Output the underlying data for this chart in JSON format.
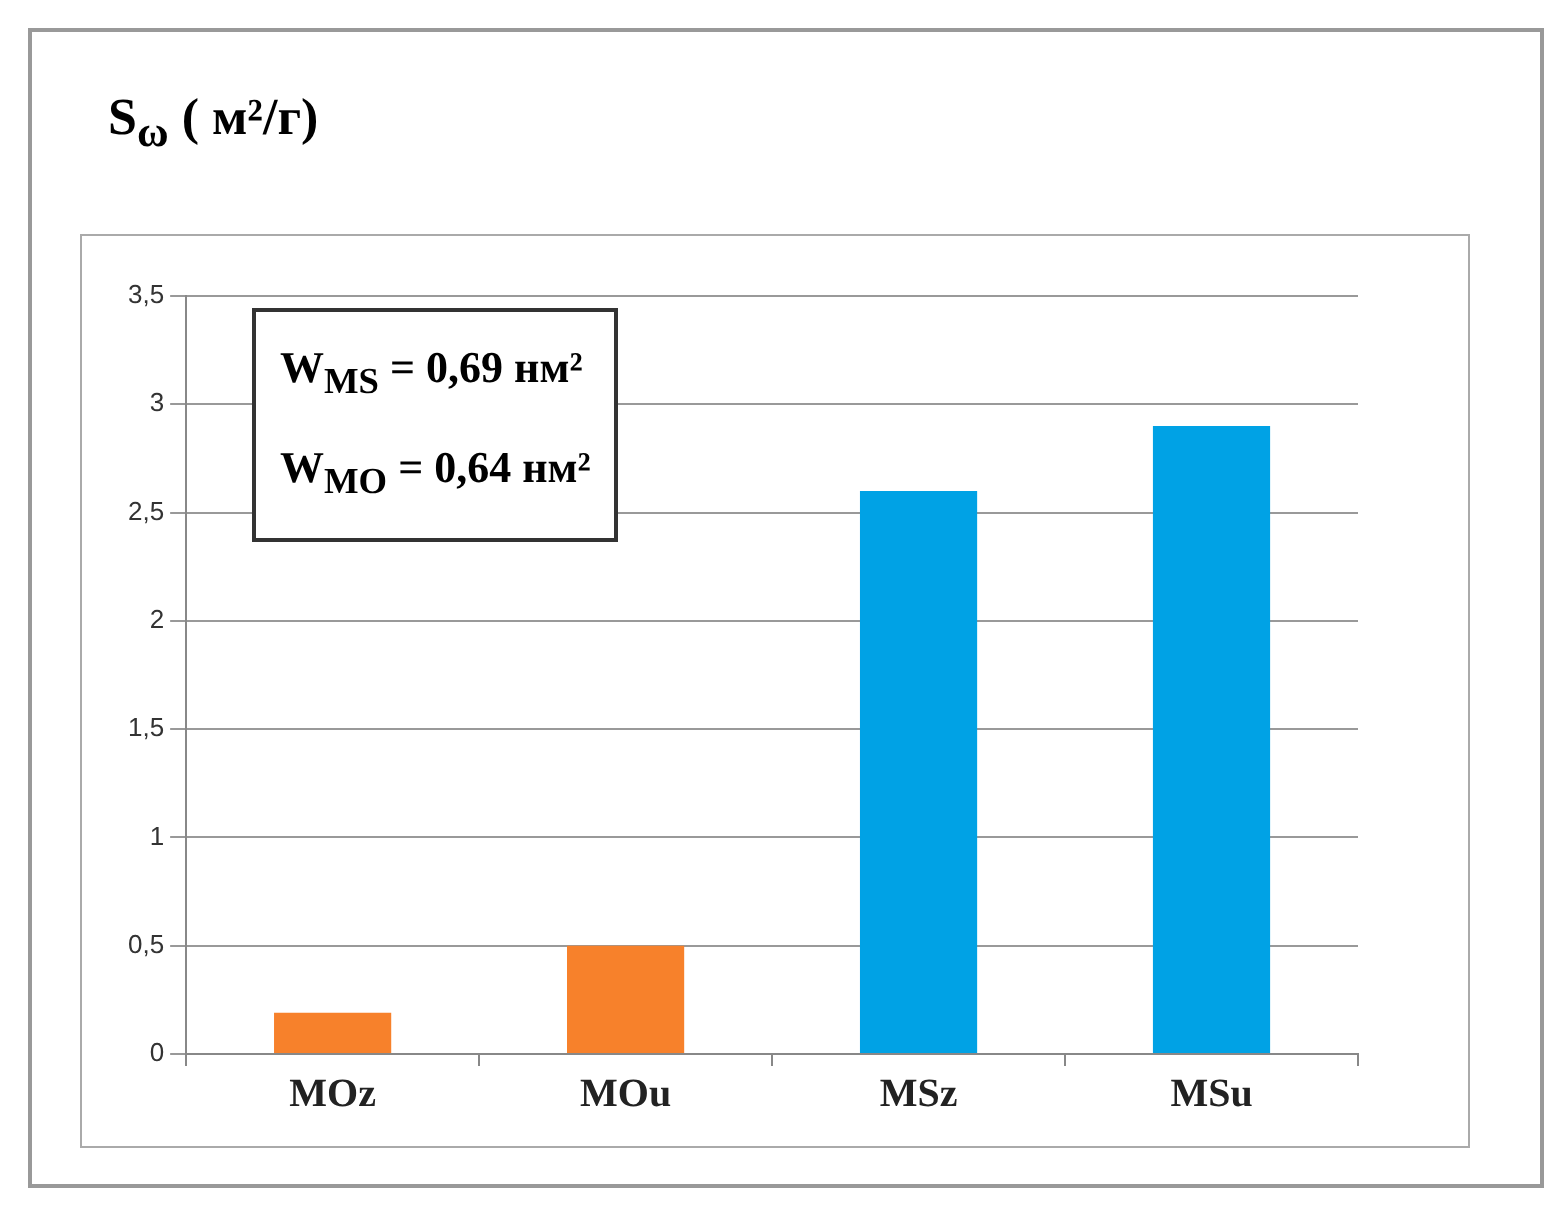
{
  "chart_data": {
    "type": "bar",
    "title": "S$_{ω}$ ( м²/г)",
    "categories": [
      "MOz",
      "MOu",
      "MSz",
      "MSu"
    ],
    "values": [
      0.19,
      0.5,
      2.6,
      2.9
    ],
    "colors": [
      "#f7812b",
      "#f7812b",
      "#00a2e5",
      "#00a2e5"
    ],
    "ylim": [
      0,
      3.5
    ],
    "yticks": [
      {
        "value": 0,
        "label": "0"
      },
      {
        "value": 0.5,
        "label": "0,5"
      },
      {
        "value": 1,
        "label": "1"
      },
      {
        "value": 1.5,
        "label": "1,5"
      },
      {
        "value": 2,
        "label": "2"
      },
      {
        "value": 2.5,
        "label": "2,5"
      },
      {
        "value": 3,
        "label": "3"
      },
      {
        "value": 3.5,
        "label": "3,5"
      }
    ],
    "grid": "y",
    "annotations": [
      "W$_{MS}$ = 0,69 нм²",
      "W$_{MO}$ = 0,64 нм²"
    ]
  }
}
